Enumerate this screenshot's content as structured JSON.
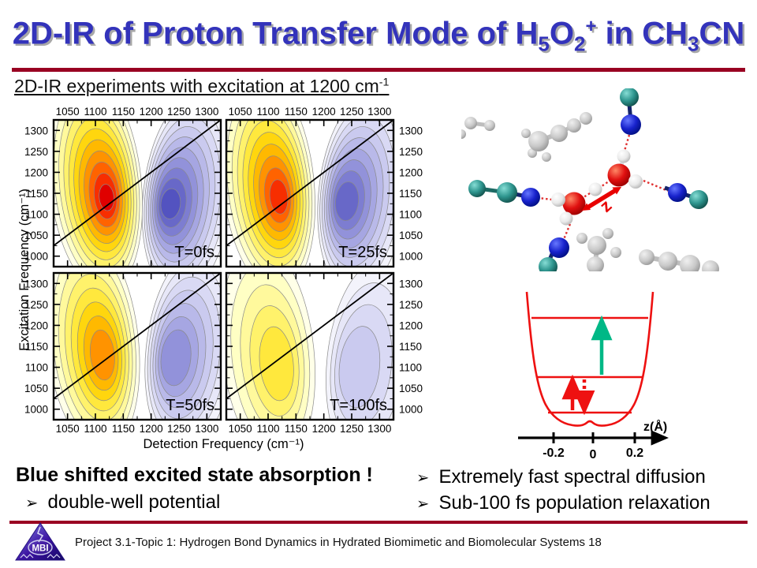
{
  "colors": {
    "title": "#3333bb",
    "rule": "#990022",
    "oxygen": "#dd1111",
    "hydrogen": "#f2f2f2",
    "nitrogen": "#1122cc",
    "nitrile_carbon": "#2e9790",
    "solvent_gray": "#c8c8c8",
    "potential_curve": "#ee1111",
    "pump_arrow": "#ee1111",
    "esa_arrow": "#00b886",
    "proton_arrow": "#ee1111"
  },
  "title": {
    "segments": [
      {
        "t": "2D-IR of Proton Transfer Mode of H"
      },
      {
        "t": "5",
        "s": "sub"
      },
      {
        "t": "O"
      },
      {
        "t": "2",
        "s": "sub"
      },
      {
        "t": "+",
        "s": "sup"
      },
      {
        "t": " in CH"
      },
      {
        "t": "3",
        "s": "sub"
      },
      {
        "t": "CN"
      }
    ]
  },
  "subtitle": {
    "segments": [
      {
        "t": "2D-IR experiments with excitation at 1200 cm"
      },
      {
        "t": "-1",
        "s": "sup"
      }
    ]
  },
  "chart_data": {
    "type": "heatmap",
    "title": "2D-IR spectra at four waiting times",
    "xlabel": "Detection Frequency (cm⁻¹)",
    "ylabel": "Excitation Frequency (cm⁻¹)",
    "xlim": [
      1025,
      1325
    ],
    "ylim": [
      975,
      1325
    ],
    "x_ticks": [
      1050,
      1100,
      1150,
      1200,
      1250,
      1300
    ],
    "y_ticks": [
      1300,
      1250,
      1200,
      1150,
      1100,
      1050,
      1000
    ],
    "diagonal_line": true,
    "grid": false,
    "panels": [
      {
        "label": "T=0fs",
        "bleach_peak": {
          "detection": 1120,
          "excitation": 1140
        },
        "esa_peak": {
          "detection": 1235,
          "excitation": 1125
        },
        "bleach_levels": 11,
        "esa_levels": 10
      },
      {
        "label": "T=25fs",
        "bleach_peak": {
          "detection": 1120,
          "excitation": 1140
        },
        "esa_peak": {
          "detection": 1240,
          "excitation": 1130
        },
        "bleach_levels": 10,
        "esa_levels": 9
      },
      {
        "label": "T=50fs",
        "bleach_peak": {
          "detection": 1115,
          "excitation": 1125
        },
        "esa_peak": {
          "detection": 1240,
          "excitation": 1120
        },
        "bleach_levels": 8,
        "esa_levels": 7
      },
      {
        "label": "T=100fs",
        "bleach_peak": {
          "detection": 1120,
          "excitation": 1100
        },
        "esa_peak": {
          "detection": 1255,
          "excitation": 1095
        },
        "bleach_levels": 5,
        "esa_levels": 4
      }
    ],
    "positive_colors": [
      "#ffffe8",
      "#ffffc4",
      "#fff99c",
      "#fff26b",
      "#ffe83d",
      "#ffd60e",
      "#ffb900",
      "#ff9300",
      "#ff6300",
      "#f72e00",
      "#e00000"
    ],
    "negative_colors": [
      "#f3f3fb",
      "#e7e7f8",
      "#d9d9f4",
      "#cacaef",
      "#b9b9e9",
      "#a6a6e2",
      "#9292da",
      "#7d7dd1",
      "#6868c8",
      "#5353c0"
    ]
  },
  "molecule": {
    "arrow_label": "z"
  },
  "potential": {
    "x_ticks": [
      "-0.2",
      "0",
      "0.2"
    ],
    "axis_label": "z(Å)",
    "energy_levels": 3
  },
  "conclusions_left": {
    "bullet_char": "➢",
    "heading": "Blue shifted excited state absorption !",
    "bullets": [
      "double-well potential"
    ]
  },
  "conclusions_right": {
    "bullet_char": "➢",
    "bullets": [
      "Extremely fast spectral diffusion",
      "Sub-100 fs population relaxation"
    ]
  },
  "footer": {
    "text": "Project 3.1-Topic 1: Hydrogen Bond Dynamics in Hydrated Biomimetic and Biomolecular Systems 18",
    "logo_text": "MBI"
  }
}
